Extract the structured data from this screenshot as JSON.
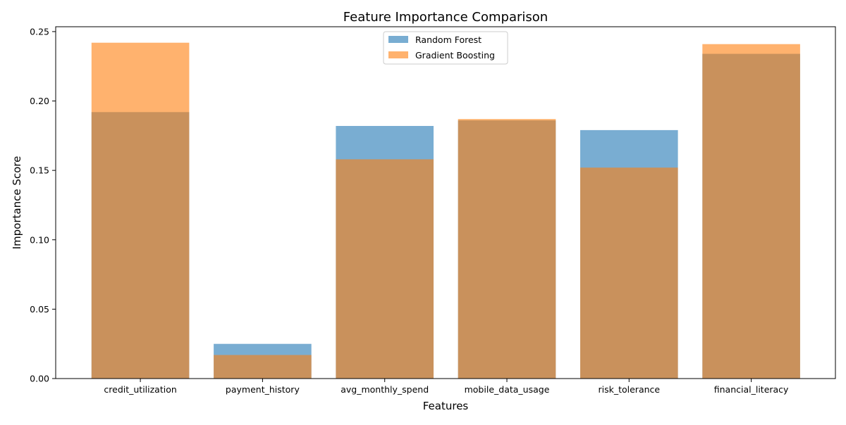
{
  "chart_data": {
    "type": "bar",
    "title": "Feature Importance Comparison",
    "xlabel": "Features",
    "ylabel": "Importance Score",
    "categories": [
      "credit_utilization",
      "payment_history",
      "avg_monthly_spend",
      "mobile_data_usage",
      "risk_tolerance",
      "financial_literacy"
    ],
    "series": [
      {
        "name": "Random Forest",
        "color": "#1f77b4",
        "opacity": 0.6,
        "values": [
          0.192,
          0.025,
          0.182,
          0.186,
          0.179,
          0.234
        ]
      },
      {
        "name": "Gradient Boosting",
        "color": "#ff7f0e",
        "opacity": 0.6,
        "values": [
          0.242,
          0.017,
          0.158,
          0.187,
          0.152,
          0.241
        ]
      }
    ],
    "ylim": [
      0,
      0.2535
    ],
    "yticks": [
      0.0,
      0.05,
      0.1,
      0.15,
      0.2,
      0.25
    ],
    "ytick_labels": [
      "0.00",
      "0.05",
      "0.10",
      "0.15",
      "0.20",
      "0.25"
    ],
    "grid": false,
    "legend": {
      "position": "top-center"
    }
  }
}
